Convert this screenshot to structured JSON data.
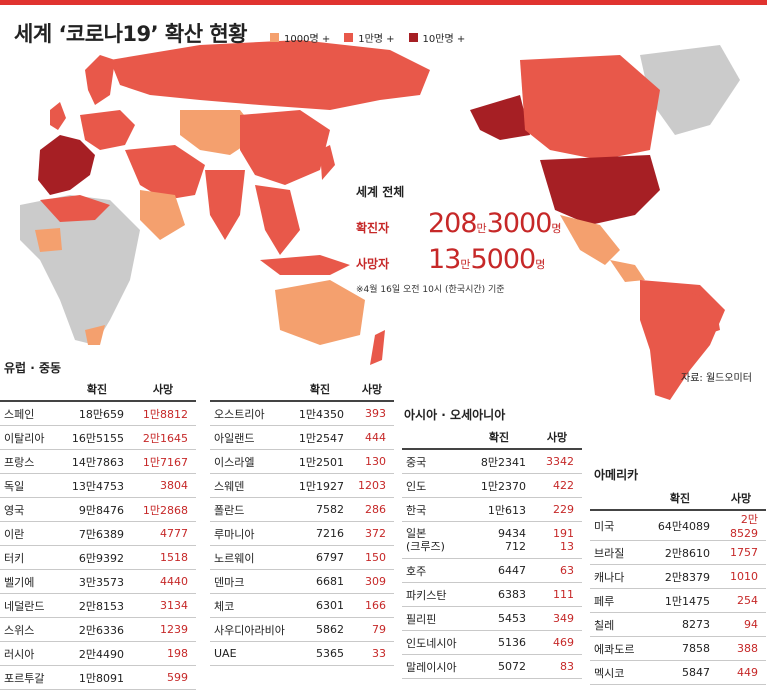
{
  "title": "세계 ‘코로나19’ 확산 현황",
  "legend": [
    {
      "label": "1000명 +",
      "color": "#f4a06e"
    },
    {
      "label": "1만명 +",
      "color": "#e8584a"
    },
    {
      "label": "10만명 +",
      "color": "#a61f24"
    }
  ],
  "colors": {
    "none": "#cbcbcb",
    "low": "#f4a06e",
    "mid": "#e8584a",
    "high": "#a61f24",
    "accent": "#e0332f"
  },
  "world_total": {
    "heading": "세계 전체",
    "confirmed_label": "확진자",
    "confirmed": {
      "a": "208",
      "u1": "만",
      "b": "3000",
      "u2": "명"
    },
    "deaths_label": "사망자",
    "deaths": {
      "a": "13",
      "u1": "만",
      "b": "5000",
      "u2": "명"
    },
    "note": "※4월 16일 오전 10시 (한국시간) 기준"
  },
  "source": "자료: 월드오미터",
  "europe": {
    "title": "유럽 · 중동",
    "col_confirmed": "확진",
    "col_deaths": "사망",
    "left": [
      {
        "name": "스페인",
        "confirmed": "18만659",
        "deaths": "1만8812"
      },
      {
        "name": "이탈리아",
        "confirmed": "16만5155",
        "deaths": "2만1645"
      },
      {
        "name": "프랑스",
        "confirmed": "14만7863",
        "deaths": "1만7167"
      },
      {
        "name": "독일",
        "confirmed": "13만4753",
        "deaths": "3804"
      },
      {
        "name": "영국",
        "confirmed": "9만8476",
        "deaths": "1만2868"
      },
      {
        "name": "이란",
        "confirmed": "7만6389",
        "deaths": "4777"
      },
      {
        "name": "터키",
        "confirmed": "6만9392",
        "deaths": "1518"
      },
      {
        "name": "벨기에",
        "confirmed": "3만3573",
        "deaths": "4440"
      },
      {
        "name": "네덜란드",
        "confirmed": "2만8153",
        "deaths": "3134"
      },
      {
        "name": "스위스",
        "confirmed": "2만6336",
        "deaths": "1239"
      },
      {
        "name": "러시아",
        "confirmed": "2만4490",
        "deaths": "198"
      },
      {
        "name": "포르투갈",
        "confirmed": "1만8091",
        "deaths": "599"
      }
    ],
    "right": [
      {
        "name": "오스트리아",
        "confirmed": "1만4350",
        "deaths": "393"
      },
      {
        "name": "아일랜드",
        "confirmed": "1만2547",
        "deaths": "444"
      },
      {
        "name": "이스라엘",
        "confirmed": "1만2501",
        "deaths": "130"
      },
      {
        "name": "스웨덴",
        "confirmed": "1만1927",
        "deaths": "1203"
      },
      {
        "name": "폴란드",
        "confirmed": "7582",
        "deaths": "286"
      },
      {
        "name": "루마니아",
        "confirmed": "7216",
        "deaths": "372"
      },
      {
        "name": "노르웨이",
        "confirmed": "6797",
        "deaths": "150"
      },
      {
        "name": "덴마크",
        "confirmed": "6681",
        "deaths": "309"
      },
      {
        "name": "체코",
        "confirmed": "6301",
        "deaths": "166"
      },
      {
        "name": "사우디아라비아",
        "confirmed": "5862",
        "deaths": "79"
      },
      {
        "name": "UAE",
        "confirmed": "5365",
        "deaths": "33"
      }
    ]
  },
  "asia": {
    "title": "아시아 · 오세아니아",
    "col_confirmed": "확진",
    "col_deaths": "사망",
    "rows": [
      {
        "name": "중국",
        "confirmed": "8만2341",
        "deaths": "3342"
      },
      {
        "name": "인도",
        "confirmed": "1만2370",
        "deaths": "422"
      },
      {
        "name": "한국",
        "confirmed": "1만613",
        "deaths": "229"
      },
      {
        "name": "일본",
        "name2": "(크루즈)",
        "confirmed": "9434",
        "confirmed2": "712",
        "deaths": "191",
        "deaths2": "13"
      },
      {
        "name": "호주",
        "confirmed": "6447",
        "deaths": "63"
      },
      {
        "name": "파키스탄",
        "confirmed": "6383",
        "deaths": "111"
      },
      {
        "name": "필리핀",
        "confirmed": "5453",
        "deaths": "349"
      },
      {
        "name": "인도네시아",
        "confirmed": "5136",
        "deaths": "469"
      },
      {
        "name": "말레이시아",
        "confirmed": "5072",
        "deaths": "83"
      }
    ]
  },
  "americas": {
    "title": "아메리카",
    "col_confirmed": "확진",
    "col_deaths": "사망",
    "rows": [
      {
        "name": "미국",
        "confirmed": "64만4089",
        "deaths": "2만8529"
      },
      {
        "name": "브라질",
        "confirmed": "2만8610",
        "deaths": "1757"
      },
      {
        "name": "캐나다",
        "confirmed": "2만8379",
        "deaths": "1010"
      },
      {
        "name": "페루",
        "confirmed": "1만1475",
        "deaths": "254"
      },
      {
        "name": "칠레",
        "confirmed": "8273",
        "deaths": "94"
      },
      {
        "name": "에콰도르",
        "confirmed": "7858",
        "deaths": "388"
      },
      {
        "name": "멕시코",
        "confirmed": "5847",
        "deaths": "449"
      }
    ]
  }
}
